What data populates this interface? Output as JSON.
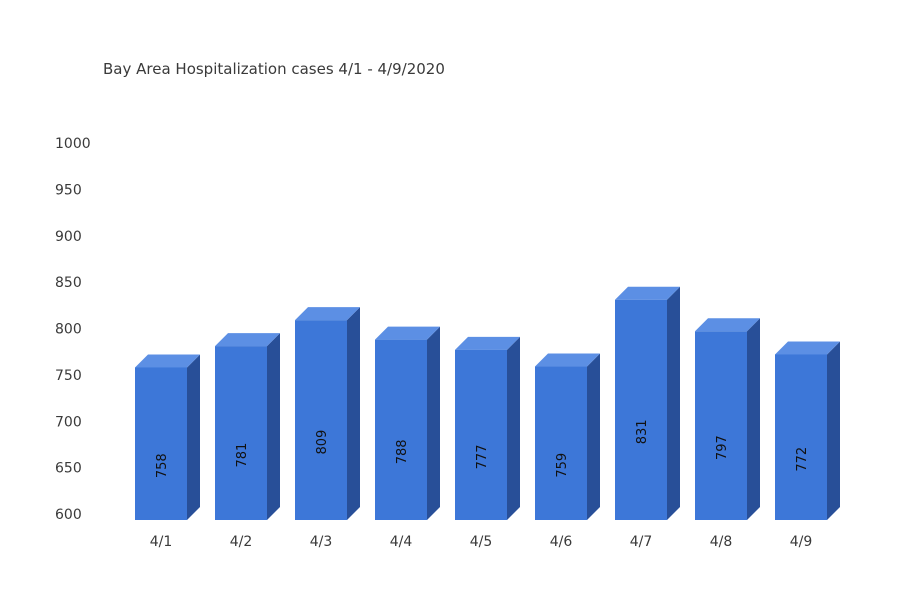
{
  "colors": {
    "bar_front": "#3d77d8",
    "bar_top": "#5c8fe4",
    "bar_side": "#284f98"
  },
  "chart_data": {
    "type": "bar",
    "title": "Bay Area Hospitalization cases 4/1 - 4/9/2020",
    "xlabel": "",
    "ylabel": "",
    "categories": [
      "4/1",
      "4/2",
      "4/3",
      "4/4",
      "4/5",
      "4/6",
      "4/7",
      "4/8",
      "4/9"
    ],
    "values": [
      758,
      781,
      809,
      788,
      777,
      759,
      831,
      797,
      772
    ],
    "value_labels": [
      "758",
      "781",
      "809",
      "788",
      "777",
      "759",
      "831",
      "797",
      "772"
    ],
    "yticks": [
      "600",
      "650",
      "700",
      "750",
      "800",
      "850",
      "900",
      "950",
      "1000"
    ],
    "ylim": [
      600,
      1000
    ],
    "grid": false,
    "legend": "none",
    "style": "3d"
  }
}
